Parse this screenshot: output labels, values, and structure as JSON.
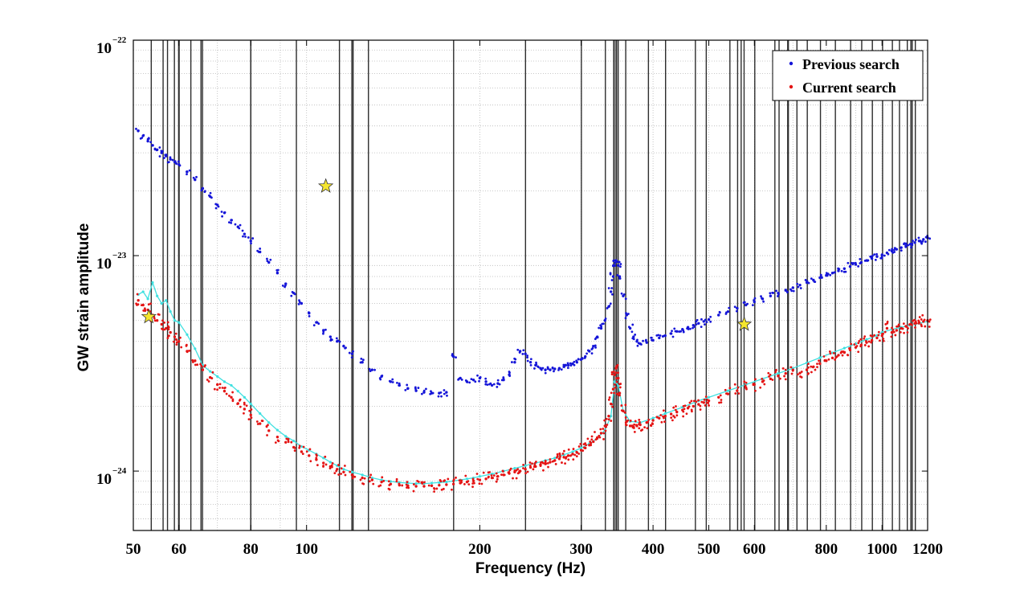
{
  "chart_data": {
    "type": "scatter",
    "title": "",
    "xlabel": "Frequency (Hz)",
    "ylabel": "GW strain amplitude",
    "x_scale": "log",
    "y_scale": "log",
    "xlim": [
      50,
      1200
    ],
    "ylim": [
      5.3e-25,
      1e-22
    ],
    "grid": true,
    "legend_position": "top-right",
    "x_ticks": [
      {
        "value": 50,
        "label": "50"
      },
      {
        "value": 60,
        "label": "60"
      },
      {
        "value": 80,
        "label": "80"
      },
      {
        "value": 100,
        "label": "100"
      },
      {
        "value": 200,
        "label": "200"
      },
      {
        "value": 300,
        "label": "300"
      },
      {
        "value": 400,
        "label": "400"
      },
      {
        "value": 500,
        "label": "500"
      },
      {
        "value": 600,
        "label": "600"
      },
      {
        "value": 800,
        "label": "800"
      },
      {
        "value": 1000,
        "label": "1000"
      },
      {
        "value": 1200,
        "label": "1200"
      }
    ],
    "y_ticks": [
      {
        "value": 1e-22,
        "base": "10",
        "exp": "−22"
      },
      {
        "value": 1e-23,
        "base": "10",
        "exp": "−23"
      },
      {
        "value": 1e-24,
        "base": "10",
        "exp": "−24"
      }
    ],
    "vetoed_bands": [
      [
        53.6,
        53.8
      ],
      [
        56.2,
        56.4
      ],
      [
        57.2,
        57.4
      ],
      [
        58.8,
        59.0
      ],
      [
        59.8,
        60.2
      ],
      [
        62.8,
        63.0
      ],
      [
        65.4,
        65.6
      ],
      [
        65.8,
        66.0
      ],
      [
        79.8,
        80.2
      ],
      [
        95.8,
        96.2
      ],
      [
        113.8,
        114.2
      ],
      [
        119.6,
        119.8
      ],
      [
        120.2,
        120.4
      ],
      [
        127.8,
        128.2
      ],
      [
        179.7,
        180.3
      ],
      [
        239.6,
        240.4
      ],
      [
        299.6,
        300.4
      ],
      [
        329.8,
        330.2
      ],
      [
        341.0,
        343.2
      ],
      [
        344.2,
        346.5
      ],
      [
        347.2,
        348.6
      ],
      [
        357.8,
        358.6
      ],
      [
        391.8,
        392.2
      ],
      [
        419.6,
        420.2
      ],
      [
        472.8,
        473.2
      ],
      [
        493.8,
        494.2
      ],
      [
        542.8,
        543.2
      ],
      [
        559.8,
        560.2
      ],
      [
        567.8,
        568.2
      ],
      [
        574.5,
        574.9
      ],
      [
        599.6,
        600.0
      ],
      [
        649.8,
        650.2
      ],
      [
        660.8,
        661.2
      ],
      [
        684.0,
        689.0
      ],
      [
        709.8,
        710.2
      ],
      [
        739.8,
        740.2
      ],
      [
        779.8,
        780.2
      ],
      [
        827.8,
        828.2
      ],
      [
        879.8,
        880.2
      ],
      [
        919.8,
        920.2
      ],
      [
        959.8,
        960.2
      ],
      [
        999.8,
        1000.2
      ],
      [
        1039.8,
        1040.2
      ],
      [
        1069.8,
        1070.2
      ],
      [
        1103.8,
        1104.2
      ],
      [
        1119.6,
        1121.0
      ],
      [
        1125.8,
        1126.6
      ],
      [
        1139.8,
        1140.2
      ]
    ],
    "series": [
      {
        "name": "Previous search",
        "color": "#1515d8",
        "marker": "dot",
        "x": [
          51,
          52,
          53,
          54,
          55,
          56,
          57,
          58,
          59,
          60,
          62,
          64,
          66,
          68,
          70,
          72,
          74,
          76,
          78,
          80,
          83,
          86,
          89,
          92,
          95,
          98,
          101,
          104,
          107,
          110,
          113,
          116,
          120,
          125,
          130,
          135,
          140,
          145,
          150,
          155,
          160,
          165,
          170,
          175,
          180,
          185,
          190,
          195,
          200,
          205,
          210,
          215,
          220,
          225,
          230,
          235,
          240,
          245,
          250,
          255,
          260,
          265,
          270,
          275,
          280,
          285,
          290,
          295,
          300,
          305,
          310,
          315,
          320,
          325,
          330,
          335,
          338,
          341,
          343,
          345,
          348,
          350,
          355,
          360,
          365,
          370,
          375,
          380,
          390,
          400,
          410,
          420,
          430,
          440,
          450,
          460,
          470,
          480,
          490,
          500,
          520,
          540,
          560,
          580,
          600,
          620,
          640,
          660,
          680,
          700,
          720,
          740,
          760,
          780,
          800,
          820,
          840,
          860,
          880,
          900,
          920,
          940,
          960,
          980,
          1000,
          1020,
          1040,
          1060,
          1080,
          1100,
          1120,
          1140,
          1160,
          1180,
          1200
        ],
        "y": [
          3.8e-23,
          3.6e-23,
          3.4e-23,
          3.25e-23,
          3.1e-23,
          3e-23,
          2.9e-23,
          2.8e-23,
          2.72e-23,
          2.65e-23,
          2.45e-23,
          2.25e-23,
          2.05e-23,
          1.88e-23,
          1.72e-23,
          1.58e-23,
          1.46e-23,
          1.36e-23,
          1.26e-23,
          1.17e-23,
          1.04e-23,
          9.3e-24,
          8.3e-24,
          7.4e-24,
          6.7e-24,
          6e-24,
          5.4e-24,
          4.9e-24,
          4.5e-24,
          4.2e-24,
          4e-24,
          3.8e-24,
          3.5e-24,
          3.2e-24,
          2.95e-24,
          2.75e-24,
          2.6e-24,
          2.5e-24,
          2.42e-24,
          2.36e-24,
          2.32e-24,
          2.3e-24,
          2.3e-24,
          2.32e-24,
          3.4e-24,
          2.7e-24,
          2.6e-24,
          2.65e-24,
          2.7e-24,
          2.6e-24,
          2.5e-24,
          2.55e-24,
          2.65e-24,
          2.8e-24,
          3.2e-24,
          3.6e-24,
          3.5e-24,
          3.2e-24,
          3.1e-24,
          3e-24,
          2.95e-24,
          2.95e-24,
          2.98e-24,
          3e-24,
          3.05e-24,
          3.1e-24,
          3.15e-24,
          3.2e-24,
          3.3e-24,
          3.4e-24,
          3.6e-24,
          3.8e-24,
          4.2e-24,
          4.6e-24,
          5e-24,
          5.8e-24,
          6.8e-24,
          8e-24,
          9e-24,
          9.5e-24,
          9e-24,
          8e-24,
          6.5e-24,
          5.3e-24,
          4.6e-24,
          4.2e-24,
          4e-24,
          3.9e-24,
          3.95e-24,
          4.05e-24,
          4.15e-24,
          4.25e-24,
          4.35e-24,
          4.45e-24,
          4.55e-24,
          4.65e-24,
          4.75e-24,
          4.85e-24,
          4.95e-24,
          5.05e-24,
          5.3e-24,
          5.5e-24,
          5.7e-24,
          5.9e-24,
          6.1e-24,
          6.3e-24,
          6.5e-24,
          6.7e-24,
          6.9e-24,
          7.1e-24,
          7.3e-24,
          7.5e-24,
          7.7e-24,
          7.9e-24,
          8.1e-24,
          8.3e-24,
          8.5e-24,
          8.7e-24,
          8.9e-24,
          9.1e-24,
          9.3e-24,
          9.5e-24,
          9.7e-24,
          9.9e-24,
          1.01e-23,
          1.03e-23,
          1.05e-23,
          1.07e-23,
          1.09e-23,
          1.11e-23,
          1.13e-23,
          1.15e-23,
          1.17e-23,
          1.19e-23,
          1.21e-23
        ]
      },
      {
        "name": "Current search",
        "color": "#e41414",
        "marker": "dot",
        "x": [
          51,
          52,
          53,
          54,
          55,
          56,
          57,
          58,
          59,
          60,
          62,
          64,
          66,
          68,
          70,
          72,
          74,
          76,
          78,
          80,
          83,
          86,
          89,
          92,
          95,
          98,
          101,
          104,
          107,
          110,
          113,
          116,
          120,
          125,
          130,
          135,
          140,
          145,
          150,
          155,
          160,
          165,
          170,
          175,
          180,
          185,
          190,
          195,
          200,
          205,
          210,
          215,
          220,
          225,
          230,
          235,
          240,
          245,
          250,
          255,
          260,
          265,
          270,
          275,
          280,
          285,
          290,
          295,
          300,
          305,
          310,
          315,
          320,
          325,
          330,
          335,
          338,
          341,
          343,
          345,
          348,
          350,
          355,
          360,
          365,
          370,
          375,
          380,
          390,
          400,
          410,
          420,
          430,
          440,
          450,
          460,
          470,
          480,
          490,
          500,
          520,
          540,
          560,
          580,
          600,
          620,
          640,
          660,
          680,
          700,
          720,
          740,
          760,
          780,
          800,
          820,
          840,
          860,
          880,
          900,
          920,
          940,
          960,
          980,
          1000,
          1020,
          1040,
          1060,
          1080,
          1100,
          1120,
          1140,
          1160,
          1180,
          1200
        ],
        "y": [
          6.2e-24,
          5.9e-24,
          5.6e-24,
          5.3e-24,
          5e-24,
          4.8e-24,
          4.6e-24,
          4.4e-24,
          4.2e-24,
          4e-24,
          3.6e-24,
          3.25e-24,
          2.95e-24,
          2.72e-24,
          2.52e-24,
          2.35e-24,
          2.2e-24,
          2.06e-24,
          1.94e-24,
          1.82e-24,
          1.66e-24,
          1.54e-24,
          1.44e-24,
          1.36e-24,
          1.29e-24,
          1.23e-24,
          1.18e-24,
          1.13e-24,
          1.09e-24,
          1.05e-24,
          1.02e-24,
          9.9e-25,
          9.6e-25,
          9.3e-25,
          9.1e-25,
          8.9e-25,
          8.7e-25,
          8.6e-25,
          8.55e-25,
          8.5e-25,
          8.5e-25,
          8.55e-25,
          8.6e-25,
          8.65e-25,
          8.7e-25,
          8.8e-25,
          8.9e-25,
          9e-25,
          9.1e-25,
          9.2e-25,
          9.3e-25,
          9.45e-25,
          9.6e-25,
          9.75e-25,
          9.9e-25,
          1e-24,
          1.02e-24,
          1.04e-24,
          1.05e-24,
          1.07e-24,
          1.08e-24,
          1.1e-24,
          1.12e-24,
          1.14e-24,
          1.16e-24,
          1.18e-24,
          1.2e-24,
          1.22e-24,
          1.25e-24,
          1.28e-24,
          1.32e-24,
          1.37e-24,
          1.43e-24,
          1.5e-24,
          1.62e-24,
          1.8e-24,
          2.05e-24,
          2.4e-24,
          2.8e-24,
          3e-24,
          2.7e-24,
          2.3e-24,
          1.9e-24,
          1.7e-24,
          1.62e-24,
          1.6e-24,
          1.62e-24,
          1.64e-24,
          1.68e-24,
          1.72e-24,
          1.76e-24,
          1.8e-24,
          1.84e-24,
          1.88e-24,
          1.92e-24,
          1.96e-24,
          2e-24,
          2.04e-24,
          2.08e-24,
          2.12e-24,
          2.2e-24,
          2.28e-24,
          2.36e-24,
          2.44e-24,
          2.52e-24,
          2.6e-24,
          2.68e-24,
          2.76e-24,
          2.84e-24,
          2.95e-24,
          2.85e-24,
          2.95e-24,
          3.05e-24,
          3.15e-24,
          3.25e-24,
          3.35e-24,
          3.45e-24,
          3.55e-24,
          3.65e-24,
          3.75e-24,
          3.85e-24,
          3.95e-24,
          4.05e-24,
          4.15e-24,
          4.25e-24,
          4.6e-24,
          4.4e-24,
          4.5e-24,
          4.6e-24,
          4.7e-24,
          4.8e-24,
          4.85e-24,
          4.9e-24,
          4.95e-24,
          5e-24
        ]
      },
      {
        "name": "",
        "color": "#3fe0e0",
        "marker": "line",
        "x": [
          51,
          52,
          53,
          54,
          55,
          56,
          57,
          58,
          59,
          60,
          62,
          64,
          66,
          68,
          70,
          72,
          74,
          76,
          78,
          80,
          83,
          86,
          89,
          92,
          95,
          98,
          101,
          104,
          107,
          110,
          113,
          116,
          120,
          125,
          130,
          135,
          140,
          145,
          150,
          155,
          160,
          165,
          170,
          175,
          180,
          185,
          190,
          195,
          200,
          210,
          220,
          230,
          240,
          250,
          260,
          270,
          280,
          290,
          300,
          310,
          320,
          330,
          338,
          343,
          348,
          355,
          365,
          380,
          400,
          420,
          450,
          480,
          500,
          540,
          580,
          620,
          660,
          700,
          740,
          780,
          820,
          860,
          900,
          940,
          980,
          1000,
          1040,
          1080,
          1120,
          1160,
          1200
        ],
        "y": [
          6.6e-24,
          6.8e-24,
          6.3e-24,
          7.5e-24,
          6.5e-24,
          6e-24,
          6.2e-24,
          5.5e-24,
          5e-24,
          4.9e-24,
          4.3e-24,
          3.7e-24,
          3.1e-24,
          2.9e-24,
          2.75e-24,
          2.6e-24,
          2.5e-24,
          2.35e-24,
          2.2e-24,
          2.05e-24,
          1.85e-24,
          1.68e-24,
          1.55e-24,
          1.45e-24,
          1.38e-24,
          1.3e-24,
          1.25e-24,
          1.2e-24,
          1.15e-24,
          1.1e-24,
          1.06e-24,
          1.02e-24,
          9.9e-25,
          9.6e-25,
          9.3e-25,
          9.1e-25,
          8.95e-25,
          8.85e-25,
          8.8e-25,
          8.75e-25,
          8.75e-25,
          8.8e-25,
          8.85e-25,
          8.9e-25,
          9e-25,
          9.1e-25,
          9.2e-25,
          9.3e-25,
          9.45e-25,
          9.7e-25,
          1e-24,
          1.03e-24,
          1.06e-24,
          1.09e-24,
          1.12e-24,
          1.15e-24,
          1.19e-24,
          1.23e-24,
          1.28e-24,
          1.34e-24,
          1.42e-24,
          1.55e-24,
          1.8e-24,
          2.6e-24,
          2.5e-24,
          1.9e-24,
          1.7e-24,
          1.68e-24,
          1.76e-24,
          1.85e-24,
          1.98e-24,
          2.12e-24,
          2.2e-24,
          2.36e-24,
          2.52e-24,
          2.68e-24,
          2.84e-24,
          3e-24,
          3.18e-24,
          3.36e-24,
          3.54e-24,
          3.72e-24,
          3.9e-24,
          4.08e-24,
          4.26e-24,
          4.4e-24,
          4.55e-24,
          4.65e-24,
          4.75e-24,
          4.85e-24,
          4.95e-24
        ]
      },
      {
        "name": "",
        "color": "#f5e62e",
        "marker": "star",
        "x": [
          53.2,
          108,
          576
        ],
        "y": [
          5.2e-24,
          2.1e-23,
          4.8e-24
        ]
      }
    ]
  }
}
